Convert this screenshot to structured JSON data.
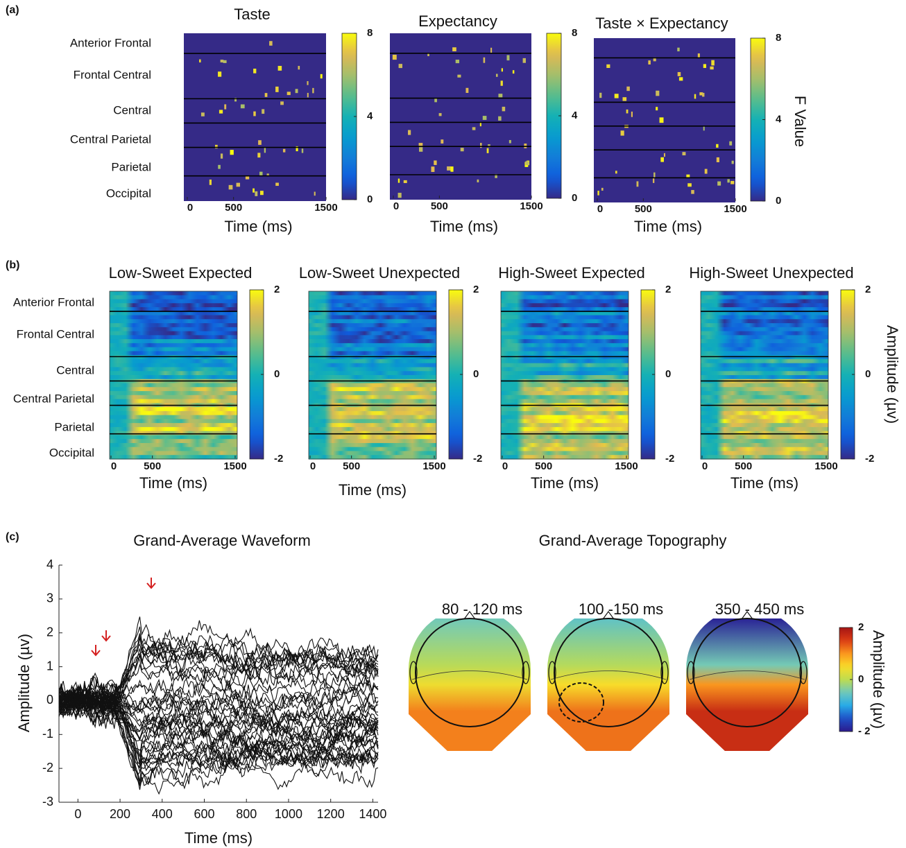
{
  "panel_a": {
    "label": "(a)",
    "maps": [
      {
        "title": "Taste"
      },
      {
        "title": "Expectancy"
      },
      {
        "title": "Taste × Expectancy"
      }
    ],
    "row_labels": [
      "Anterior Frontal",
      "Frontal Central",
      "Central",
      "Central Parietal",
      "Parietal",
      "Occipital"
    ],
    "xlabel": "Time (ms)",
    "xlim": [
      0,
      1500
    ],
    "xticks": [
      0,
      500,
      1500
    ],
    "color_lim": [
      0,
      8
    ],
    "color_ticks": [
      0,
      4,
      8
    ],
    "color_label": "F Value"
  },
  "panel_b": {
    "label": "(b)",
    "maps": [
      {
        "title": "Low-Sweet Expected"
      },
      {
        "title": "Low-Sweet Unexpected"
      },
      {
        "title": "High-Sweet Expected"
      },
      {
        "title": "High-Sweet Unexpected"
      }
    ],
    "row_labels": [
      "Anterior Frontal",
      "Frontal Central",
      "Central",
      "Central Parietal",
      "Parietal",
      "Occipital"
    ],
    "xlabel": "Time (ms)",
    "xlim": [
      0,
      1500
    ],
    "xticks": [
      0,
      500,
      1500
    ],
    "color_lim": [
      -2,
      2
    ],
    "color_ticks": [
      -2,
      0,
      2
    ],
    "color_label": "Amplitude (µv)"
  },
  "panel_c": {
    "label": "(c)",
    "waveform": {
      "title": "Grand-Average Waveform",
      "xlabel": "Time (ms)",
      "ylabel": "Amplitude (µv)",
      "xlim": [
        -90,
        1425
      ],
      "xticks": [
        0,
        200,
        400,
        600,
        800,
        1000,
        1200,
        1400
      ],
      "ylim": [
        -3,
        4
      ],
      "yticks": [
        -3,
        -2,
        -1,
        0,
        1,
        2,
        3,
        4
      ]
    },
    "topography": {
      "title": "Grand-Average Topography",
      "maps": [
        {
          "title": "80 - 120 ms"
        },
        {
          "title": "100 -150 ms"
        },
        {
          "title": "350 - 450 ms"
        }
      ],
      "color_lim": [
        -2,
        2
      ],
      "color_ticks": [
        {
          "value": -2,
          "label": "- 2"
        },
        0,
        2
      ],
      "color_label": "Amplitude (µv)"
    }
  }
}
